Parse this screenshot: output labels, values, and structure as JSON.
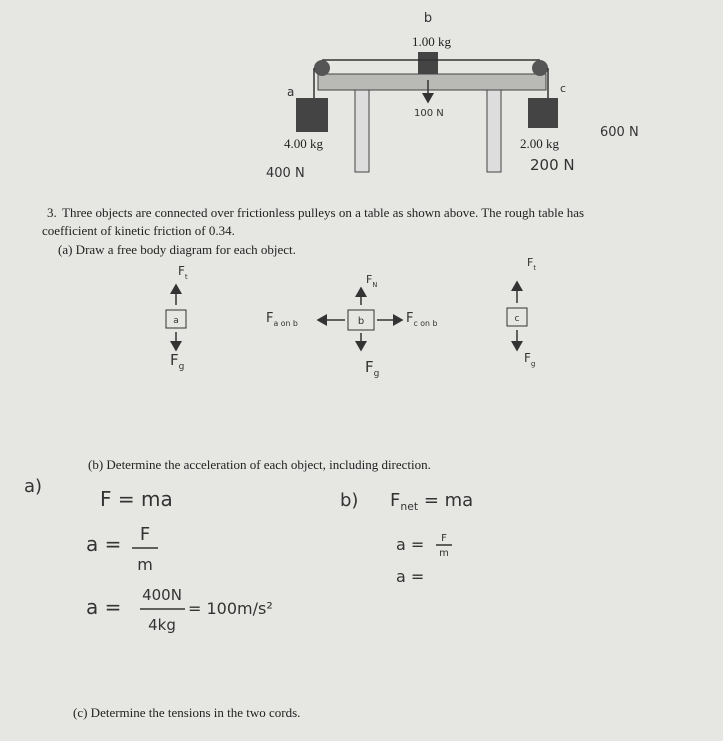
{
  "diagram": {
    "labels": {
      "b": "b",
      "mass_b": "1.00 kg",
      "a": "a",
      "c": "c",
      "force_b": "100 N",
      "mass_a": "4.00 kg",
      "mass_c": "2.00 kg",
      "note": "600 N",
      "force_a": "400 N",
      "force_c": "200 N"
    }
  },
  "question": {
    "number": "3.",
    "line1": "Three objects are connected over frictionless pulleys on a table as shown above.  The rough table has",
    "line2": "coefficient of kinetic friction of 0.34."
  },
  "part_a": {
    "prompt": "(a)  Draw a free body diagram for each object.",
    "fbd_a": {
      "box": "a",
      "up": {
        "symbol": "F",
        "sub": "t"
      },
      "down": {
        "symbol": "F",
        "sub": "g"
      }
    },
    "fbd_b": {
      "box": "b",
      "up": {
        "symbol": "F",
        "sub": "N"
      },
      "left": {
        "symbol": "F",
        "sub": "a on b"
      },
      "right": {
        "symbol": "F",
        "sub": "c on b"
      },
      "down": {
        "symbol": "F",
        "sub": "g"
      }
    },
    "fbd_c": {
      "box": "c",
      "up": {
        "symbol": "F",
        "sub": "t"
      },
      "down": {
        "symbol": "F",
        "sub": "g"
      }
    }
  },
  "part_b": {
    "prompt": "(b)  Determine the acceleration of each object, including direction.",
    "answer_a": {
      "label": "a)",
      "eq1": "F = ma",
      "eq2_left": "a =",
      "eq2_num": "F",
      "eq2_den": "m",
      "eq3_left": "a =",
      "eq3_num": "400N",
      "eq3_den": "4kg",
      "eq3_result": "= 100m/s²"
    },
    "answer_b": {
      "label": "b)",
      "eq1": {
        "symbol": "F",
        "sub": "net",
        "rest": " = ma"
      },
      "eq2_left": "a =",
      "eq2_num": "F",
      "eq2_den": "m",
      "eq3_left": "a ="
    }
  },
  "part_c": {
    "prompt": "(c)  Determine the tensions in the two cords."
  }
}
